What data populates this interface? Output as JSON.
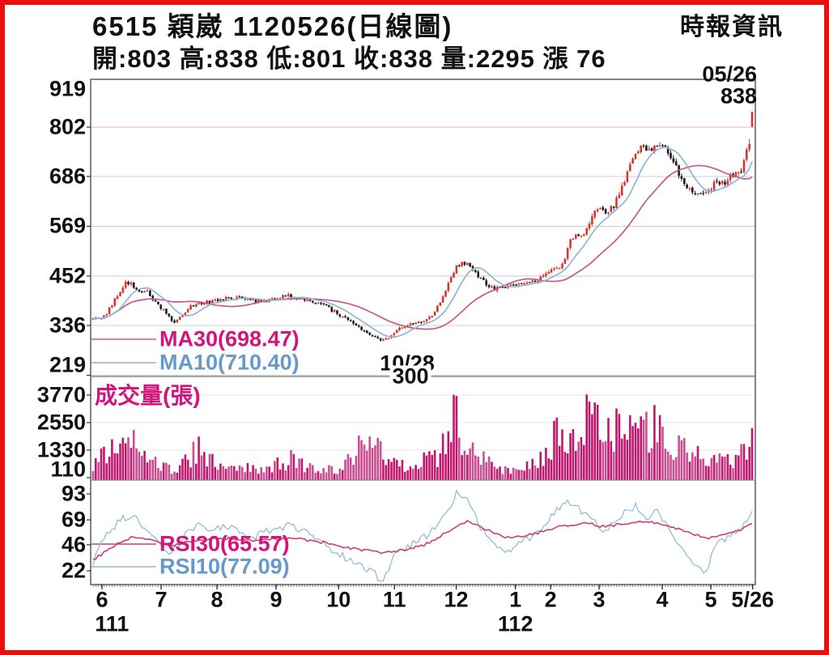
{
  "header": {
    "title": "6515 穎崴 1120526(日線圖)",
    "source": "時報資訊",
    "quote": {
      "text": "開:803 高:838 低:801 收:838 量:2295 漲 76",
      "open": 803,
      "high": 838,
      "low": 801,
      "close": 838,
      "volume": 2295,
      "change": 76
    }
  },
  "colors": {
    "frame_red": "#e8100c",
    "text": "#111111",
    "magenta_text": "#d4147c",
    "blue_text": "#6699cc",
    "vol_bar": "#c2156e",
    "vol_bar_light": "#ca4f92",
    "candle_up": "#d8352b",
    "candle_down": "#1c1c1c",
    "ma30": "#c75a85",
    "ma10": "#8fb4d9",
    "rsi30": "#cc4070",
    "rsi10": "#94bcd8",
    "grid": "#cccccc",
    "grid_pink": "#f0aab8",
    "grid_faint": "#e8e8e8",
    "border": "#666666",
    "sep": "#888888"
  },
  "chart_data": {
    "type": "candlestick",
    "symbol": "6515",
    "name": "穎崴",
    "date": "1120526",
    "period_label": "日線圖",
    "num_days": 244,
    "x_axis": {
      "ticks": [
        {
          "label": "6",
          "f": 0.017
        },
        {
          "label": "7",
          "f": 0.106
        },
        {
          "label": "8",
          "f": 0.19
        },
        {
          "label": "9",
          "f": 0.279
        },
        {
          "label": "10",
          "f": 0.373
        },
        {
          "label": "11",
          "f": 0.457
        },
        {
          "label": "12",
          "f": 0.55
        },
        {
          "label": "1",
          "f": 0.639
        },
        {
          "label": "2",
          "f": 0.692
        },
        {
          "label": "3",
          "f": 0.765
        },
        {
          "label": "4",
          "f": 0.86
        },
        {
          "label": "5",
          "f": 0.933
        },
        {
          "label": "5/26",
          "f": 0.996
        }
      ],
      "year_labels": [
        {
          "label": "111",
          "f": 0.032
        },
        {
          "label": "112",
          "f": 0.639
        }
      ]
    },
    "price_panel": {
      "yticks": [
        919,
        802,
        686,
        569,
        452,
        336,
        219
      ],
      "ylim": [
        216,
        914
      ],
      "grid_highlight_value": 802,
      "ma30_label": "MA30(698.47)",
      "ma30_value": 698.47,
      "ma10_label": "MA10(710.40)",
      "ma10_value": 710.4,
      "high_annotation": {
        "date_label": "05/26",
        "price_label": "838",
        "price": 838
      },
      "low_annotation": {
        "date_label": "10/28",
        "price_label": "300",
        "f": 0.442,
        "price": 300
      },
      "prev_close": 762,
      "last_candle": {
        "open": 803,
        "high": 838,
        "low": 801,
        "close": 838
      },
      "close_anchors": [
        [
          0,
          352
        ],
        [
          0.018,
          358
        ],
        [
          0.035,
          402
        ],
        [
          0.052,
          440
        ],
        [
          0.062,
          428
        ],
        [
          0.072,
          410
        ],
        [
          0.082,
          415
        ],
        [
          0.095,
          392
        ],
        [
          0.11,
          365
        ],
        [
          0.125,
          341
        ],
        [
          0.14,
          370
        ],
        [
          0.155,
          386
        ],
        [
          0.175,
          391
        ],
        [
          0.195,
          397
        ],
        [
          0.215,
          402
        ],
        [
          0.235,
          396
        ],
        [
          0.255,
          391
        ],
        [
          0.275,
          398
        ],
        [
          0.295,
          406
        ],
        [
          0.315,
          398
        ],
        [
          0.335,
          391
        ],
        [
          0.355,
          379
        ],
        [
          0.372,
          363
        ],
        [
          0.388,
          346
        ],
        [
          0.403,
          331
        ],
        [
          0.418,
          317
        ],
        [
          0.432,
          306
        ],
        [
          0.442,
          301
        ],
        [
          0.455,
          318
        ],
        [
          0.468,
          331
        ],
        [
          0.482,
          338
        ],
        [
          0.497,
          344
        ],
        [
          0.512,
          357
        ],
        [
          0.527,
          392
        ],
        [
          0.54,
          438
        ],
        [
          0.552,
          477
        ],
        [
          0.56,
          484
        ],
        [
          0.57,
          476
        ],
        [
          0.582,
          456
        ],
        [
          0.595,
          434
        ],
        [
          0.61,
          421
        ],
        [
          0.625,
          428
        ],
        [
          0.64,
          432
        ],
        [
          0.655,
          436
        ],
        [
          0.67,
          441
        ],
        [
          0.683,
          449
        ],
        [
          0.695,
          462
        ],
        [
          0.706,
          472
        ],
        [
          0.714,
          480
        ],
        [
          0.722,
          538
        ],
        [
          0.735,
          548
        ],
        [
          0.748,
          560
        ],
        [
          0.76,
          600
        ],
        [
          0.77,
          612
        ],
        [
          0.78,
          600
        ],
        [
          0.79,
          618
        ],
        [
          0.8,
          652
        ],
        [
          0.812,
          700
        ],
        [
          0.824,
          745
        ],
        [
          0.833,
          758
        ],
        [
          0.843,
          744
        ],
        [
          0.853,
          757
        ],
        [
          0.862,
          768
        ],
        [
          0.872,
          744
        ],
        [
          0.881,
          716
        ],
        [
          0.89,
          690
        ],
        [
          0.899,
          668
        ],
        [
          0.908,
          654
        ],
        [
          0.917,
          646
        ],
        [
          0.926,
          641
        ],
        [
          0.936,
          656
        ],
        [
          0.947,
          676
        ],
        [
          0.958,
          668
        ],
        [
          0.968,
          684
        ],
        [
          0.977,
          694
        ],
        [
          0.985,
          700
        ],
        [
          0.993,
          756
        ],
        [
          1,
          838
        ]
      ]
    },
    "volume_panel": {
      "label": "成交量(張)",
      "yticks": [
        3770,
        2550,
        1330,
        110
      ],
      "last_volume": 2295,
      "volume_anchors": [
        [
          0,
          700
        ],
        [
          0.02,
          1100
        ],
        [
          0.04,
          1600
        ],
        [
          0.06,
          1750
        ],
        [
          0.08,
          1200
        ],
        [
          0.1,
          700
        ],
        [
          0.12,
          500
        ],
        [
          0.14,
          900
        ],
        [
          0.16,
          1300
        ],
        [
          0.18,
          800
        ],
        [
          0.2,
          500
        ],
        [
          0.22,
          450
        ],
        [
          0.24,
          600
        ],
        [
          0.26,
          450
        ],
        [
          0.28,
          700
        ],
        [
          0.3,
          900
        ],
        [
          0.32,
          600
        ],
        [
          0.34,
          500
        ],
        [
          0.36,
          450
        ],
        [
          0.38,
          600
        ],
        [
          0.4,
          1300
        ],
        [
          0.42,
          1500
        ],
        [
          0.44,
          1100
        ],
        [
          0.46,
          700
        ],
        [
          0.48,
          600
        ],
        [
          0.5,
          800
        ],
        [
          0.52,
          1000
        ],
        [
          0.535,
          1700
        ],
        [
          0.548,
          3300
        ],
        [
          0.558,
          1700
        ],
        [
          0.57,
          1400
        ],
        [
          0.59,
          900
        ],
        [
          0.61,
          600
        ],
        [
          0.63,
          500
        ],
        [
          0.65,
          600
        ],
        [
          0.67,
          700
        ],
        [
          0.69,
          1500
        ],
        [
          0.705,
          1900
        ],
        [
          0.715,
          1500
        ],
        [
          0.73,
          2100
        ],
        [
          0.745,
          2800
        ],
        [
          0.755,
          4400
        ],
        [
          0.765,
          2300
        ],
        [
          0.775,
          1800
        ],
        [
          0.785,
          2600
        ],
        [
          0.795,
          2200
        ],
        [
          0.81,
          1500
        ],
        [
          0.825,
          2900
        ],
        [
          0.84,
          2300
        ],
        [
          0.855,
          2600
        ],
        [
          0.87,
          1700
        ],
        [
          0.885,
          1300
        ],
        [
          0.9,
          1700
        ],
        [
          0.915,
          1200
        ],
        [
          0.93,
          900
        ],
        [
          0.945,
          1100
        ],
        [
          0.96,
          800
        ],
        [
          0.975,
          900
        ],
        [
          0.99,
          1400
        ],
        [
          1,
          2295
        ]
      ]
    },
    "rsi_panel": {
      "rsi30_label": "RSI30(65.57)",
      "rsi30_value": 65.57,
      "rsi10_label": "RSI10(77.09)",
      "rsi10_value": 77.09,
      "yticks": [
        93,
        69,
        46,
        22
      ],
      "rsi10_anchors": [
        [
          0,
          30
        ],
        [
          0.02,
          55
        ],
        [
          0.04,
          68
        ],
        [
          0.06,
          75
        ],
        [
          0.08,
          60
        ],
        [
          0.1,
          48
        ],
        [
          0.12,
          38
        ],
        [
          0.14,
          55
        ],
        [
          0.16,
          65
        ],
        [
          0.18,
          60
        ],
        [
          0.2,
          63
        ],
        [
          0.22,
          58
        ],
        [
          0.24,
          52
        ],
        [
          0.26,
          58
        ],
        [
          0.28,
          60
        ],
        [
          0.3,
          64
        ],
        [
          0.32,
          58
        ],
        [
          0.34,
          50
        ],
        [
          0.36,
          42
        ],
        [
          0.38,
          35
        ],
        [
          0.4,
          28
        ],
        [
          0.42,
          22
        ],
        [
          0.44,
          13
        ],
        [
          0.46,
          40
        ],
        [
          0.48,
          45
        ],
        [
          0.5,
          52
        ],
        [
          0.52,
          62
        ],
        [
          0.54,
          80
        ],
        [
          0.553,
          97
        ],
        [
          0.57,
          85
        ],
        [
          0.59,
          60
        ],
        [
          0.61,
          45
        ],
        [
          0.63,
          40
        ],
        [
          0.65,
          48
        ],
        [
          0.67,
          55
        ],
        [
          0.69,
          68
        ],
        [
          0.705,
          78
        ],
        [
          0.72,
          85
        ],
        [
          0.735,
          80
        ],
        [
          0.75,
          72
        ],
        [
          0.765,
          65
        ],
        [
          0.78,
          58
        ],
        [
          0.79,
          68
        ],
        [
          0.81,
          78
        ],
        [
          0.825,
          82
        ],
        [
          0.84,
          72
        ],
        [
          0.855,
          78
        ],
        [
          0.87,
          65
        ],
        [
          0.885,
          50
        ],
        [
          0.9,
          35
        ],
        [
          0.915,
          25
        ],
        [
          0.93,
          20
        ],
        [
          0.945,
          48
        ],
        [
          0.96,
          52
        ],
        [
          0.975,
          58
        ],
        [
          0.985,
          62
        ],
        [
          1,
          77.09
        ]
      ],
      "rsi30_anchors": [
        [
          0,
          32
        ],
        [
          0.03,
          44
        ],
        [
          0.06,
          54
        ],
        [
          0.09,
          50
        ],
        [
          0.12,
          45
        ],
        [
          0.15,
          49
        ],
        [
          0.18,
          51
        ],
        [
          0.21,
          52
        ],
        [
          0.24,
          50
        ],
        [
          0.27,
          51
        ],
        [
          0.3,
          52
        ],
        [
          0.33,
          50
        ],
        [
          0.36,
          47
        ],
        [
          0.39,
          43
        ],
        [
          0.42,
          40
        ],
        [
          0.44,
          38
        ],
        [
          0.47,
          41
        ],
        [
          0.5,
          45
        ],
        [
          0.53,
          55
        ],
        [
          0.555,
          65
        ],
        [
          0.57,
          68
        ],
        [
          0.59,
          62
        ],
        [
          0.61,
          56
        ],
        [
          0.63,
          53
        ],
        [
          0.65,
          54
        ],
        [
          0.67,
          56
        ],
        [
          0.69,
          60
        ],
        [
          0.71,
          63
        ],
        [
          0.73,
          65
        ],
        [
          0.75,
          66
        ],
        [
          0.77,
          63
        ],
        [
          0.79,
          64
        ],
        [
          0.81,
          66
        ],
        [
          0.83,
          68
        ],
        [
          0.85,
          67
        ],
        [
          0.87,
          64
        ],
        [
          0.89,
          60
        ],
        [
          0.91,
          56
        ],
        [
          0.93,
          52
        ],
        [
          0.95,
          55
        ],
        [
          0.97,
          58
        ],
        [
          0.985,
          61
        ],
        [
          1,
          65.57
        ]
      ]
    }
  }
}
